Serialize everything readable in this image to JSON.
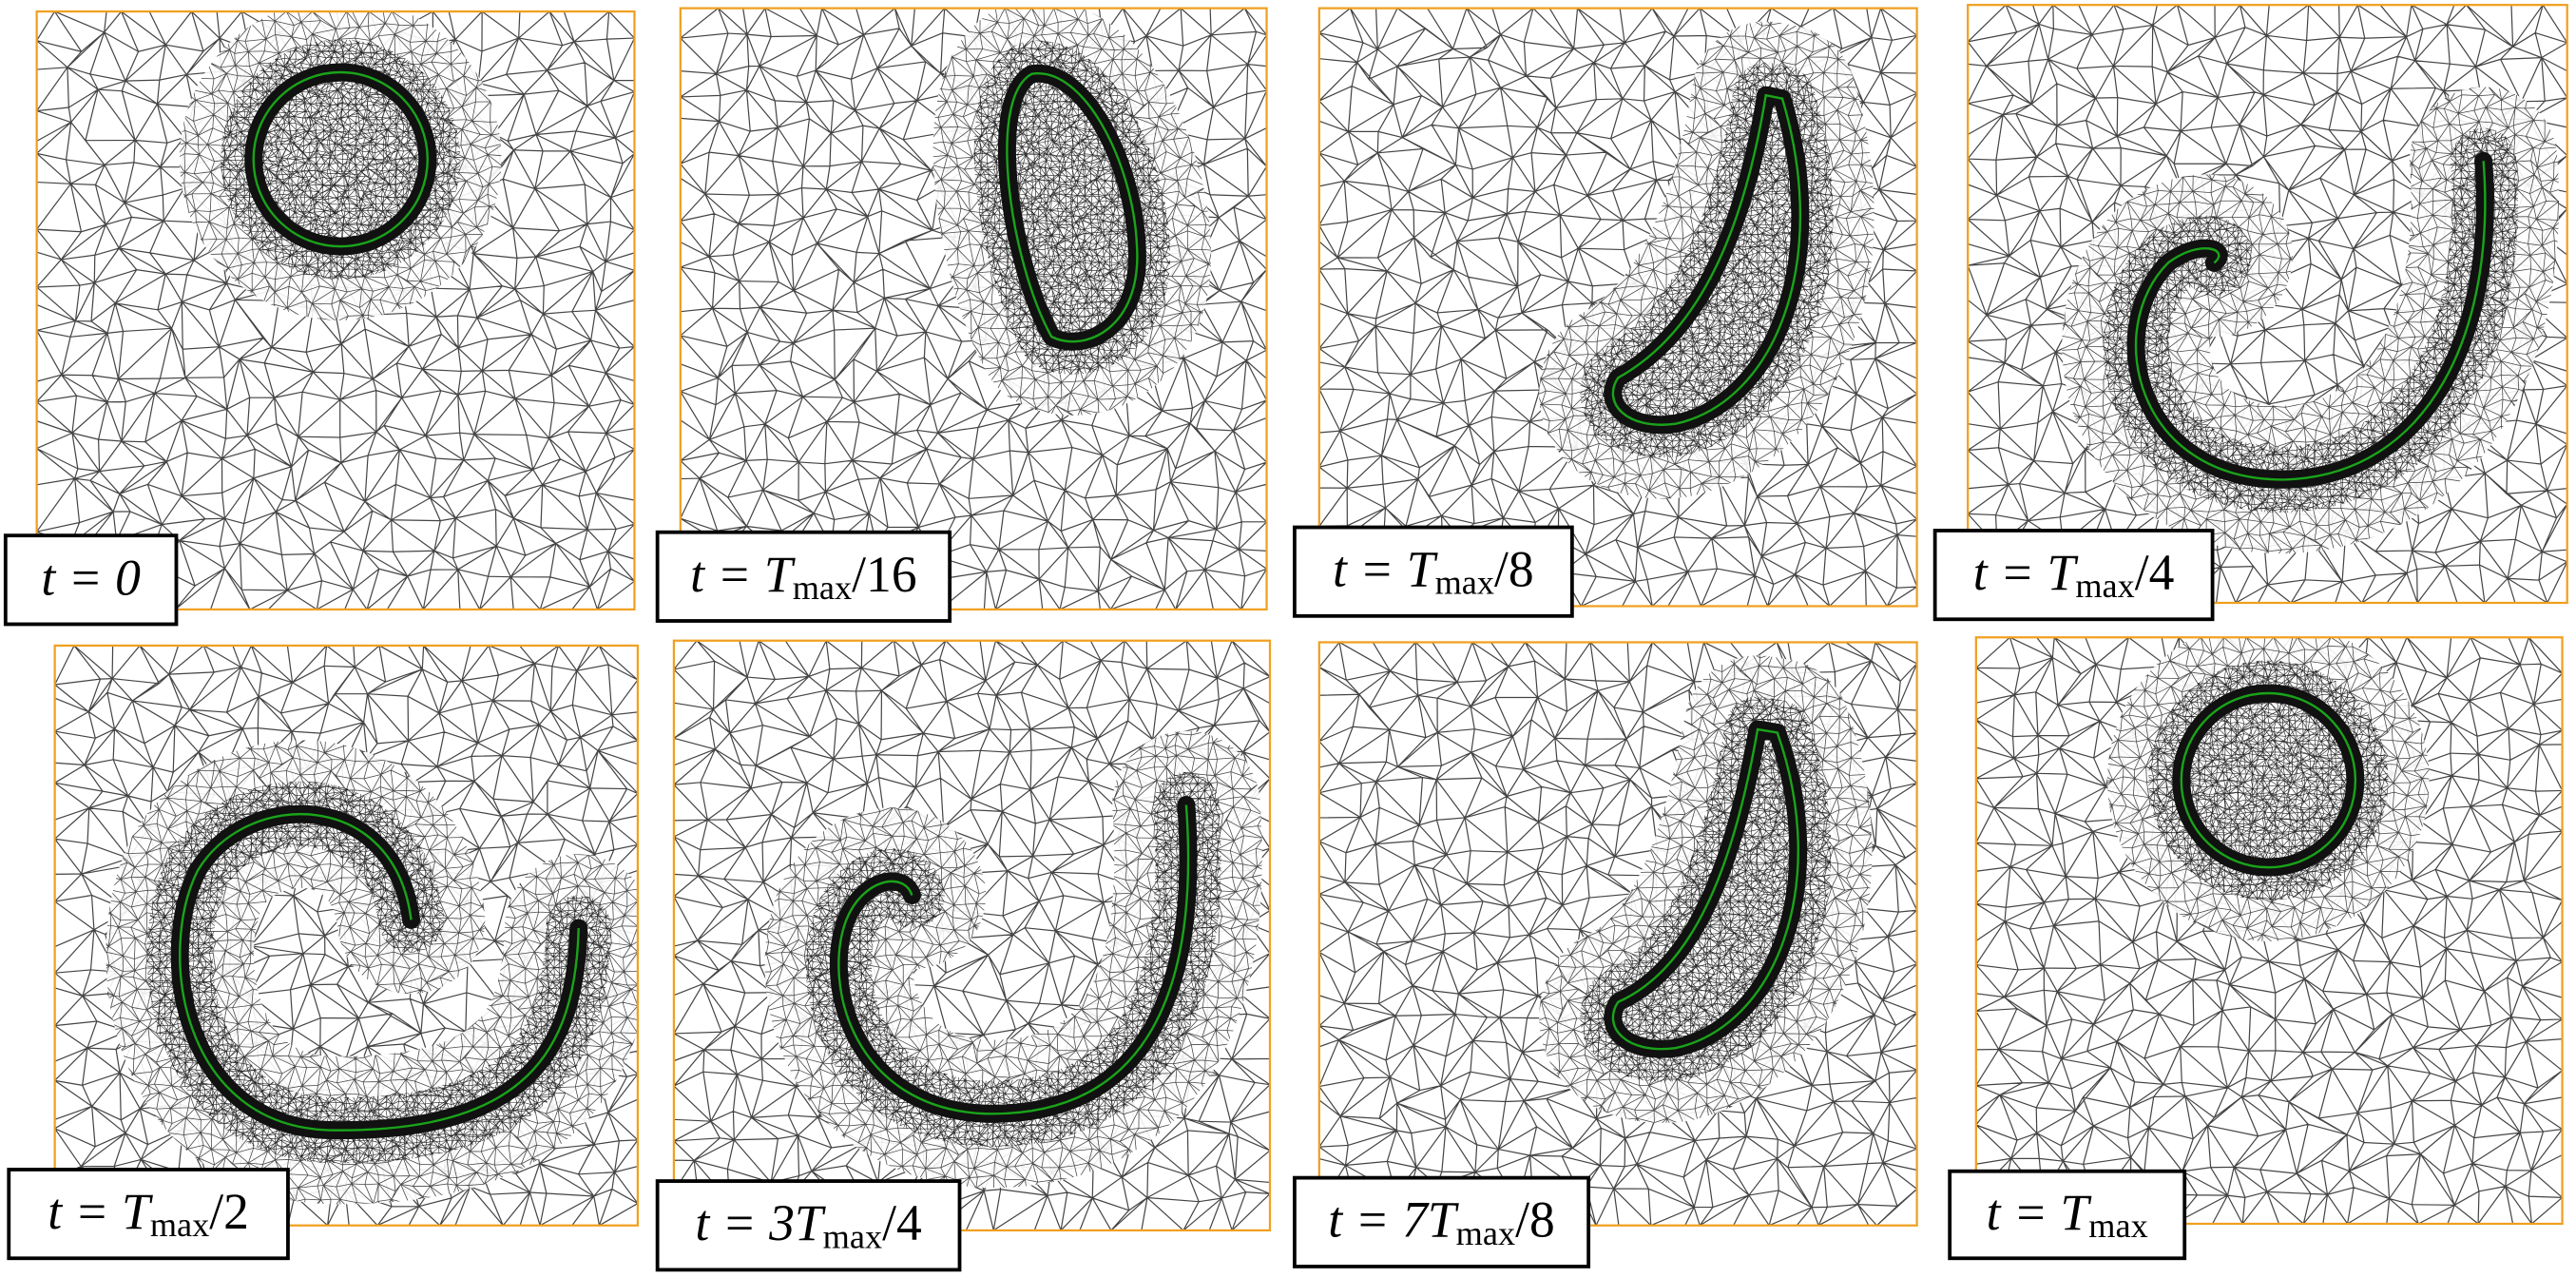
{
  "panels": [
    {
      "label": {
        "lead": "t = 0"
      }
    },
    {
      "label": {
        "lead": "t = T",
        "sub": "max",
        "tail": "/16"
      }
    },
    {
      "label": {
        "lead": "t = T",
        "sub": "max",
        "tail": "/8"
      }
    },
    {
      "label": {
        "lead": "t = T",
        "sub": "max",
        "tail": "/4"
      }
    },
    {
      "label": {
        "lead": "t = T",
        "sub": "max",
        "tail": "/2"
      }
    },
    {
      "label": {
        "lead": "t = 3T",
        "sub": "max",
        "tail": "/4"
      }
    },
    {
      "label": {
        "lead": "t = 7T",
        "sub": "max",
        "tail": "/8"
      }
    },
    {
      "label": {
        "lead": "t = T",
        "sub": "max"
      }
    }
  ]
}
